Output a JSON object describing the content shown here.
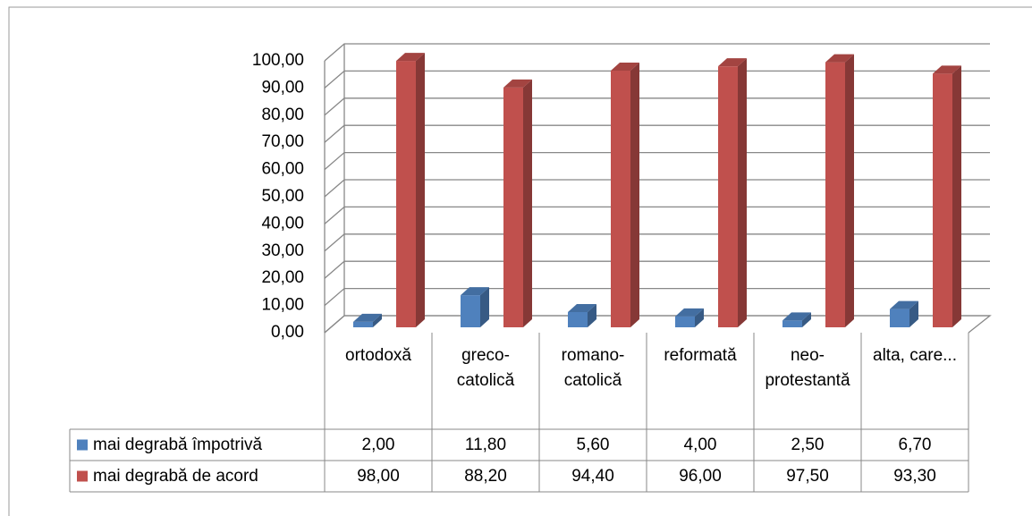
{
  "chart_data": {
    "type": "bar3d",
    "categories": [
      "ortodoxă",
      "greco-catolică",
      "romano-catolică",
      "reformată",
      "neo-protestantă",
      "alta, care..."
    ],
    "series": [
      {
        "name": "mai degrabă împotrivă",
        "color": "#4f81bd",
        "values": [
          2.0,
          11.8,
          5.6,
          4.0,
          2.5,
          6.7
        ],
        "value_labels": [
          "2,00",
          "11,80",
          "5,60",
          "4,00",
          "2,50",
          "6,70"
        ]
      },
      {
        "name": "mai degrabă de acord",
        "color": "#c0504d",
        "values": [
          98.0,
          88.2,
          94.4,
          96.0,
          97.5,
          93.3
        ],
        "value_labels": [
          "98,00",
          "88,20",
          "94,40",
          "96,00",
          "97,50",
          "93,30"
        ]
      }
    ],
    "ylim": [
      0,
      100
    ],
    "yticks": [
      {
        "value": 0,
        "label": "0,00"
      },
      {
        "value": 10,
        "label": "10,00"
      },
      {
        "value": 20,
        "label": "20,00"
      },
      {
        "value": 30,
        "label": "30,00"
      },
      {
        "value": 40,
        "label": "40,00"
      },
      {
        "value": 50,
        "label": "50,00"
      },
      {
        "value": 60,
        "label": "60,00"
      },
      {
        "value": 70,
        "label": "70,00"
      },
      {
        "value": 80,
        "label": "80,00"
      },
      {
        "value": 90,
        "label": "90,00"
      },
      {
        "value": 100,
        "label": "100,00"
      }
    ],
    "grid": true
  }
}
